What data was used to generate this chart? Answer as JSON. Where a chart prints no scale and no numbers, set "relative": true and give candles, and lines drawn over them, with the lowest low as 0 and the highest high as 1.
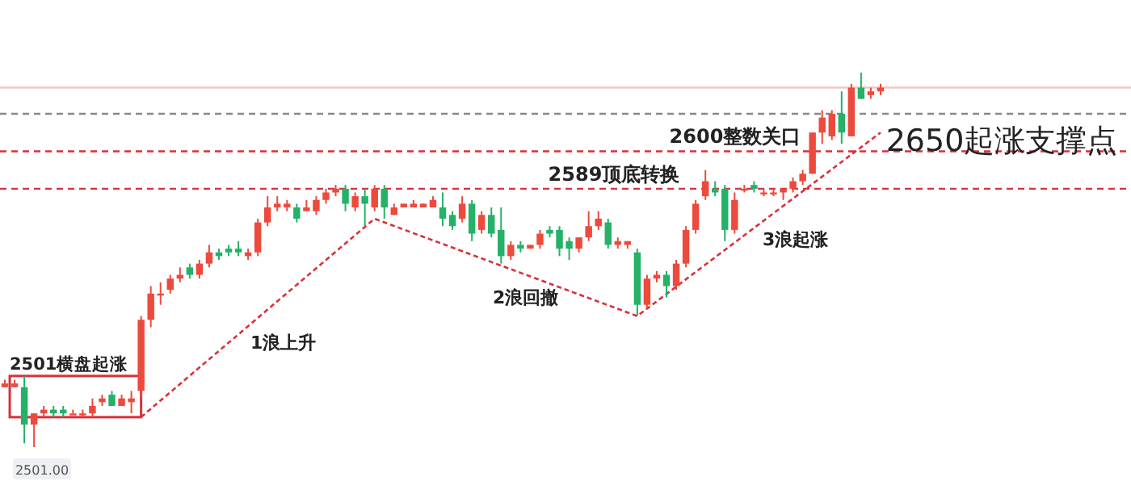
{
  "chart_data": {
    "type": "candlestick",
    "relative": true,
    "categories": [
      null,
      null,
      null,
      null,
      null,
      null,
      null,
      null,
      null,
      null,
      null,
      null,
      null,
      null,
      null,
      null,
      null,
      null,
      null,
      null,
      null,
      null,
      null,
      null,
      null,
      null,
      null,
      null,
      null,
      null,
      null,
      null,
      null,
      null,
      null,
      null,
      null,
      null,
      null,
      null,
      null,
      null,
      null,
      null,
      null,
      null,
      null,
      null,
      null,
      null,
      null,
      null,
      null,
      null,
      null,
      null,
      null,
      null,
      null,
      null,
      null,
      null,
      null,
      null,
      null,
      null,
      null,
      null,
      null,
      null,
      null,
      null,
      null,
      null,
      null,
      null,
      null,
      null,
      null,
      null,
      null,
      null,
      null,
      null,
      null,
      null,
      null,
      null,
      null,
      null,
      null
    ],
    "ohlc": [
      [
        0.16,
        0.18,
        0.16,
        0.17
      ],
      [
        0.16,
        0.18,
        0.16,
        0.17
      ],
      [
        0.16,
        0.19,
        0.01,
        0.06
      ],
      [
        0.06,
        0.09,
        0,
        0.09
      ],
      [
        0.09,
        0.11,
        0.08,
        0.1
      ],
      [
        0.1,
        0.11,
        0.08,
        0.09
      ],
      [
        0.1,
        0.11,
        0.08,
        0.09
      ],
      [
        0.09,
        0.1,
        0.09,
        0.09
      ],
      [
        0.09,
        0.1,
        0.08,
        0.09
      ],
      [
        0.09,
        0.13,
        0.08,
        0.11
      ],
      [
        0.12,
        0.14,
        0.11,
        0.13
      ],
      [
        0.14,
        0.15,
        0.11,
        0.11
      ],
      [
        0.11,
        0.14,
        0.11,
        0.13
      ],
      [
        0.12,
        0.15,
        0.09,
        0.13
      ],
      [
        0.15,
        0.35,
        0.13,
        0.34
      ],
      [
        0.34,
        0.43,
        0.32,
        0.41
      ],
      [
        0.41,
        0.44,
        0.38,
        0.41
      ],
      [
        0.42,
        0.46,
        0.41,
        0.45
      ],
      [
        0.45,
        0.48,
        0.44,
        0.46
      ],
      [
        0.48,
        0.49,
        0.45,
        0.46
      ],
      [
        0.46,
        0.5,
        0.45,
        0.49
      ],
      [
        0.49,
        0.54,
        0.48,
        0.52
      ],
      [
        0.52,
        0.53,
        0.5,
        0.51
      ],
      [
        0.53,
        0.54,
        0.51,
        0.52
      ],
      [
        0.53,
        0.55,
        0.51,
        0.52
      ],
      [
        0.51,
        0.53,
        0.5,
        0.52
      ],
      [
        0.52,
        0.61,
        0.51,
        0.6
      ],
      [
        0.6,
        0.67,
        0.59,
        0.64
      ],
      [
        0.64,
        0.67,
        0.63,
        0.65
      ],
      [
        0.64,
        0.66,
        0.63,
        0.65
      ],
      [
        0.64,
        0.65,
        0.6,
        0.61
      ],
      [
        0.63,
        0.66,
        0.63,
        0.64
      ],
      [
        0.63,
        0.67,
        0.62,
        0.66
      ],
      [
        0.66,
        0.69,
        0.65,
        0.68
      ],
      [
        0.68,
        0.7,
        0.67,
        0.69
      ],
      [
        0.69,
        0.7,
        0.63,
        0.65
      ],
      [
        0.64,
        0.68,
        0.63,
        0.67
      ],
      [
        0.67,
        0.69,
        0.59,
        0.65
      ],
      [
        0.64,
        0.7,
        0.63,
        0.69
      ],
      [
        0.69,
        0.7,
        0.61,
        0.64
      ],
      [
        0.62,
        0.65,
        0.62,
        0.64
      ],
      [
        0.64,
        0.65,
        0.64,
        0.65
      ],
      [
        0.64,
        0.66,
        0.64,
        0.65
      ],
      [
        0.64,
        0.65,
        0.64,
        0.65
      ],
      [
        0.64,
        0.67,
        0.64,
        0.66
      ],
      [
        0.64,
        0.68,
        0.59,
        0.61
      ],
      [
        0.62,
        0.63,
        0.58,
        0.59
      ],
      [
        0.61,
        0.67,
        0.6,
        0.65
      ],
      [
        0.65,
        0.66,
        0.55,
        0.57
      ],
      [
        0.58,
        0.63,
        0.57,
        0.62
      ],
      [
        0.62,
        0.64,
        0.56,
        0.57
      ],
      [
        0.58,
        0.64,
        0.49,
        0.51
      ],
      [
        0.51,
        0.55,
        0.5,
        0.54
      ],
      [
        0.54,
        0.55,
        0.52,
        0.53
      ],
      [
        0.53,
        0.54,
        0.53,
        0.54
      ],
      [
        0.54,
        0.58,
        0.53,
        0.57
      ],
      [
        0.58,
        0.59,
        0.56,
        0.57
      ],
      [
        0.58,
        0.59,
        0.51,
        0.53
      ],
      [
        0.55,
        0.56,
        0.5,
        0.53
      ],
      [
        0.53,
        0.56,
        0.52,
        0.56
      ],
      [
        0.56,
        0.63,
        0.55,
        0.59
      ],
      [
        0.59,
        0.63,
        0.58,
        0.61
      ],
      [
        0.6,
        0.61,
        0.53,
        0.54
      ],
      [
        0.54,
        0.56,
        0.53,
        0.55
      ],
      [
        0.54,
        0.55,
        0.53,
        0.55
      ],
      [
        0.52,
        0.53,
        0.35,
        0.38
      ],
      [
        0.38,
        0.46,
        0.37,
        0.45
      ],
      [
        0.45,
        0.47,
        0.44,
        0.46
      ],
      [
        0.46,
        0.47,
        0.4,
        0.43
      ],
      [
        0.43,
        0.5,
        0.42,
        0.49
      ],
      [
        0.49,
        0.59,
        0.48,
        0.58
      ],
      [
        0.58,
        0.66,
        0.57,
        0.65
      ],
      [
        0.67,
        0.74,
        0.66,
        0.71
      ],
      [
        0.69,
        0.71,
        0.67,
        0.68
      ],
      [
        0.69,
        0.7,
        0.55,
        0.58
      ],
      [
        0.58,
        0.68,
        0.57,
        0.66
      ],
      [
        0.69,
        0.7,
        0.68,
        0.69
      ],
      [
        0.7,
        0.71,
        0.68,
        0.69
      ],
      [
        0.68,
        0.69,
        0.67,
        0.68
      ],
      [
        0.68,
        0.69,
        0.67,
        0.68
      ],
      [
        0.68,
        0.69,
        0.66,
        0.69
      ],
      [
        0.69,
        0.72,
        0.68,
        0.71
      ],
      [
        0.71,
        0.74,
        0.7,
        0.73
      ],
      [
        0.73,
        0.84,
        0.73,
        0.84
      ],
      [
        0.84,
        0.9,
        0.81,
        0.88
      ],
      [
        0.83,
        0.9,
        0.82,
        0.89
      ],
      [
        0.89,
        0.95,
        0.81,
        0.84
      ],
      [
        0.83,
        0.97,
        0.83,
        0.96
      ],
      [
        0.96,
        1.0,
        0.93,
        0.93
      ],
      [
        0.94,
        0.96,
        0.93,
        0.95
      ],
      [
        0.95,
        0.97,
        0.94,
        0.96
      ]
    ],
    "series": [
      {
        "type": "line",
        "color": "#d9303a",
        "line_style": "dashed",
        "values": [
          null,
          null,
          null,
          null,
          null,
          null,
          null,
          null,
          null,
          null,
          null,
          null,
          null,
          null,
          0.08,
          null,
          null,
          null,
          null,
          null,
          null,
          null,
          null,
          null,
          null,
          null,
          null,
          null,
          null,
          null,
          null,
          null,
          null,
          null,
          null,
          null,
          null,
          null,
          0.61,
          null,
          null,
          null,
          null,
          null,
          null,
          null,
          null,
          null,
          null,
          null,
          null,
          null,
          null,
          null,
          null,
          null,
          null,
          null,
          null,
          null,
          null,
          null,
          null,
          null,
          null,
          0.35,
          null,
          null,
          null,
          null,
          null,
          null,
          null,
          null,
          null,
          null,
          null,
          null,
          null,
          null,
          null,
          null,
          null,
          null,
          null,
          null,
          null,
          null,
          null,
          null,
          0.84
        ]
      }
    ],
    "ref_lines": [
      {
        "axis": "y",
        "value": 0.96,
        "label": null,
        "color": "#f5c6c6",
        "line_style": "solid"
      },
      {
        "axis": "y",
        "value": 0.69,
        "label": "2589顶底转换",
        "color": "#d9303a",
        "line_style": "dashed"
      },
      {
        "axis": "y",
        "value": 0.79,
        "label": "2600整数关口",
        "color": "#d9303a",
        "line_style": "dashed"
      },
      {
        "axis": "y",
        "value": 0.89,
        "label": "2650起涨支撑点",
        "color": "#888888",
        "line_style": "dashed"
      }
    ],
    "annotations": [
      "2501横盘起涨",
      "1浪上升",
      "2浪回撤",
      "3浪起涨",
      "2501.00"
    ]
  }
}
